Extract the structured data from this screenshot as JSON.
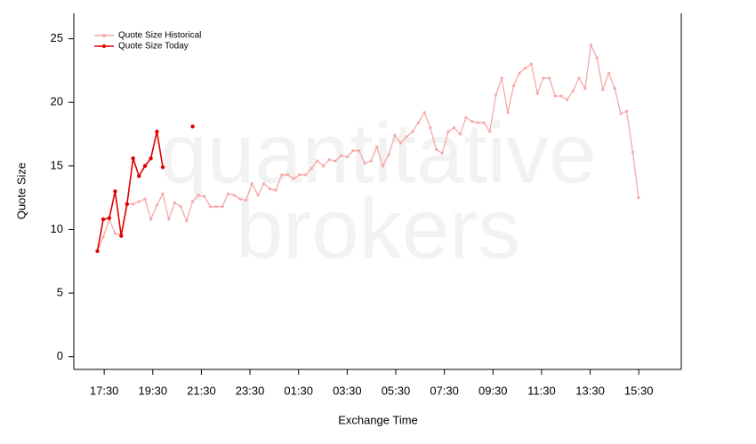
{
  "chart_data": {
    "type": "line",
    "watermark": [
      "quantitative",
      "brokers"
    ],
    "x_label": "Exchange Time",
    "y_label": "Quote Size",
    "xlim": [
      -0.75,
      24.25
    ],
    "ylim": [
      -1,
      27
    ],
    "yticks": [
      0,
      5,
      10,
      15,
      20,
      25
    ],
    "xticks": [
      {
        "value": 0.5,
        "label": "17:30"
      },
      {
        "value": 2.5,
        "label": "19:30"
      },
      {
        "value": 4.5,
        "label": "21:30"
      },
      {
        "value": 6.5,
        "label": "23:30"
      },
      {
        "value": 8.5,
        "label": "01:30"
      },
      {
        "value": 10.5,
        "label": "03:30"
      },
      {
        "value": 12.5,
        "label": "05:30"
      },
      {
        "value": 14.5,
        "label": "07:30"
      },
      {
        "value": 16.5,
        "label": "09:30"
      },
      {
        "value": 18.5,
        "label": "11:30"
      },
      {
        "value": 20.5,
        "label": "13:30"
      },
      {
        "value": 22.5,
        "label": "15:30"
      }
    ],
    "legend": "top-left",
    "series": [
      {
        "name": "Quote Size Historical",
        "color": "#f7a8a8",
        "x": [
          0.22,
          0.46,
          0.71,
          0.95,
          1.2,
          1.44,
          1.69,
          1.93,
          2.18,
          2.42,
          2.67,
          2.91,
          3.16,
          3.4,
          3.65,
          3.89,
          4.14,
          4.38,
          4.62,
          4.87,
          5.11,
          5.36,
          5.6,
          5.85,
          6.09,
          6.34,
          6.58,
          6.83,
          7.07,
          7.32,
          7.56,
          7.81,
          8.05,
          8.3,
          8.54,
          8.79,
          9.03,
          9.27,
          9.52,
          9.76,
          10.01,
          10.25,
          10.5,
          10.74,
          10.99,
          11.23,
          11.48,
          11.72,
          11.97,
          12.21,
          12.46,
          12.7,
          12.95,
          13.19,
          13.43,
          13.68,
          13.92,
          14.17,
          14.41,
          14.66,
          14.9,
          15.15,
          15.39,
          15.64,
          15.88,
          16.13,
          16.37,
          16.62,
          16.86,
          17.11,
          17.35,
          17.59,
          17.84,
          18.08,
          18.33,
          18.57,
          18.82,
          19.06,
          19.31,
          19.55,
          19.8,
          20.04,
          20.29,
          20.53,
          20.78,
          21.02,
          21.27,
          21.51,
          21.76,
          22.0,
          22.25,
          22.49
        ],
        "values": [
          8.3,
          9.4,
          10.8,
          9.7,
          9.6,
          12.0,
          12.0,
          12.2,
          12.4,
          10.8,
          11.9,
          12.8,
          10.8,
          12.1,
          11.8,
          10.7,
          12.2,
          12.7,
          12.6,
          11.8,
          11.8,
          11.8,
          12.8,
          12.7,
          12.4,
          12.3,
          13.6,
          12.7,
          13.6,
          13.2,
          13.1,
          14.3,
          14.3,
          14.0,
          14.3,
          14.3,
          14.8,
          15.4,
          15.0,
          15.5,
          15.4,
          15.8,
          15.7,
          16.2,
          16.2,
          15.2,
          15.4,
          16.5,
          15.0,
          15.9,
          17.4,
          16.8,
          17.3,
          17.7,
          18.4,
          19.2,
          18.0,
          16.3,
          16.0,
          17.7,
          18.0,
          17.5,
          18.8,
          18.5,
          18.4,
          18.4,
          17.7,
          20.6,
          21.9,
          19.2,
          21.3,
          22.3,
          22.7,
          23.0,
          20.7,
          21.9,
          21.9,
          20.5,
          20.5,
          20.2,
          20.9,
          21.9,
          21.1,
          24.5,
          23.5,
          21.0,
          22.3,
          21.1,
          19.1,
          19.3,
          16.1,
          12.5
        ]
      },
      {
        "name": "Quote Size Today",
        "color": "#e00000",
        "x": [
          0.22,
          0.46,
          0.71,
          0.95,
          1.2,
          1.44,
          1.69,
          1.93,
          2.18,
          2.42,
          2.67,
          2.91,
          3.16,
          3.4,
          3.65,
          3.89,
          4.14
        ],
        "values": [
          8.3,
          10.8,
          10.9,
          13.0,
          9.5,
          12.0,
          15.6,
          14.2,
          15.0,
          15.6,
          17.7,
          14.9,
          null,
          null,
          null,
          null,
          18.1
        ]
      }
    ]
  }
}
